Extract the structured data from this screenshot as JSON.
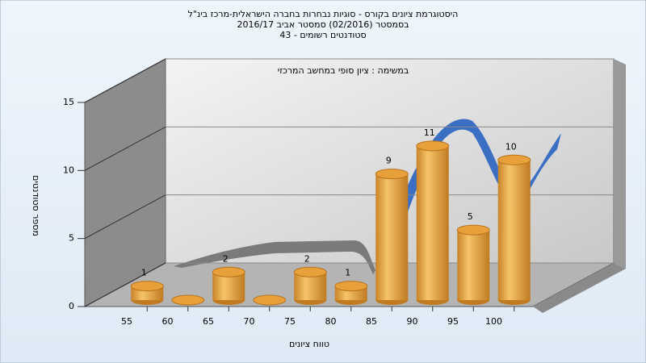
{
  "chart_data": {
    "type": "bar",
    "title": [
      "היסטוגרמת ציונים בקורס - סוגיות נבחרות בחברה הישראלית-מרכז בינ\"ל",
      "בסמסטר (02/2016) סמסטר אביב 2016/17",
      "סטודנטים רשומים - 43"
    ],
    "subtitle": "במשימה : ציון סופי במחשב המרכזי",
    "x_label": "טווח ציונים",
    "y_label": "מספר סטודנטים",
    "categories": [
      "55",
      "60",
      "65",
      "70",
      "75",
      "80",
      "85",
      "90",
      "95",
      "100"
    ],
    "values": [
      1,
      0,
      2,
      0,
      2,
      1,
      9,
      11,
      5,
      10
    ],
    "color": "#e8a13a",
    "ylim": [
      0,
      15
    ],
    "yticks": [
      0,
      5,
      10,
      15
    ],
    "grid": true
  }
}
